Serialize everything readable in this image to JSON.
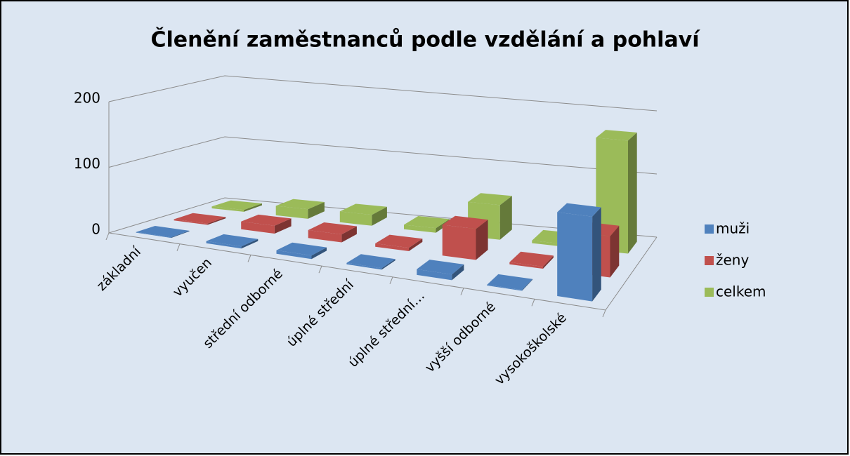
{
  "chart_data": {
    "type": "bar3d",
    "title": "Členění zaměstnanců podle vzdělání a pohlaví",
    "categories": [
      "základní",
      "vyučen",
      "střední odborné",
      "úplné střední",
      "úplné střední…",
      "vyšší odborné",
      "vysokoškolské"
    ],
    "series": [
      {
        "name": "muži",
        "color": "#4f81bd",
        "values": [
          1,
          3,
          5,
          2,
          8,
          1,
          112
        ]
      },
      {
        "name": "ženy",
        "color": "#c0504d",
        "values": [
          2,
          12,
          12,
          5,
          45,
          3,
          58
        ]
      },
      {
        "name": "celkem",
        "color": "#9bbb59",
        "values": [
          3,
          15,
          17,
          7,
          53,
          4,
          170
        ]
      }
    ],
    "ylim": [
      0,
      200
    ],
    "yticks": [
      0,
      100,
      200
    ],
    "grid": true,
    "legend": "right"
  }
}
